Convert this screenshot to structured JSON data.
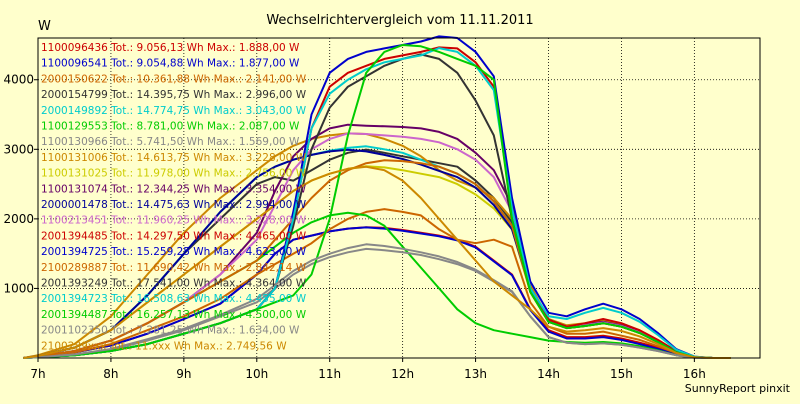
{
  "chart_data": {
    "type": "line",
    "title": "Wechselrichtervergleich vom 11.11.2011",
    "ylabel": "W",
    "xlabel": "",
    "credit": "SunnyReport pinxit",
    "xlim": [
      7,
      16.9
    ],
    "ylim": [
      0,
      4600
    ],
    "y_ticks": [
      1000,
      2000,
      3000,
      4000
    ],
    "x_ticks": [
      7,
      8,
      9,
      10,
      11,
      12,
      13,
      14,
      15,
      16
    ],
    "x_tick_labels": [
      "7h",
      "8h",
      "9h",
      "10h",
      "11h",
      "12h",
      "13h",
      "14h",
      "15h",
      "16h"
    ],
    "grid": true,
    "legend_position": "top-left",
    "legend": [
      {
        "id": "1100096436",
        "label": "1100096436 Tot.: 9.056,13 Wh Max.: 1.888,00 W",
        "color": "#cc0000"
      },
      {
        "id": "1100096541",
        "label": "1100096541 Tot.: 9.054,88 Wh Max.: 1.877,00 W",
        "color": "#0000cc"
      },
      {
        "id": "2000150622",
        "label": "2000150622 Tot.: 10.361,88 Wh Max.: 2.141,00 W",
        "color": "#cc6600"
      },
      {
        "id": "2000154799",
        "label": "2000154799 Tot.: 14.395,75 Wh Max.: 2.996,00 W",
        "color": "#333333"
      },
      {
        "id": "2000149892",
        "label": "2000149892 Tot.: 14.774,75 Wh Max.: 3.043,00 W",
        "color": "#00cccc"
      },
      {
        "id": "1100129553",
        "label": "1100129553 Tot.: 8.781,00 Wh Max.: 2.087,00 W",
        "color": "#00cc00"
      },
      {
        "id": "1100130966",
        "label": "1100130966 Tot.: 5.741,50 Wh Max.: 1.569,00 W",
        "color": "#888888"
      },
      {
        "id": "1100131006",
        "label": "1100131006 Tot.: 14.613,75 Wh Max.: 3.228,00 W",
        "color": "#cc8800"
      },
      {
        "id": "1100131025",
        "label": "1100131025 Tot.: 11.978,00 Wh Max.: 2.756,00 W",
        "color": "#cccc00"
      },
      {
        "id": "1100131074",
        "label": "1100131074 Tot.: 12.344,25 Wh Max.: 3.354,00 W",
        "color": "#660066"
      },
      {
        "id": "2000001478",
        "label": "2000001478 Tot.: 14.475,63 Wh Max.: 2.994,00 W",
        "color": "#000099"
      },
      {
        "id": "1100213451",
        "label": "1100213451 Tot.: 11.960,25 Wh Max.: 3.228,00 W",
        "color": "#cc66cc"
      },
      {
        "id": "2001394485",
        "label": "2001394485 Tot.: 14.297,50 Wh Max.: 4.465,00 W",
        "color": "#cc0000"
      },
      {
        "id": "2001394725",
        "label": "2001394725 Tot.: 15.259,25 Wh Max.: 4.623,00 W",
        "color": "#0000cc"
      },
      {
        "id": "2100289887",
        "label": "2100289887 Tot.: 11.690,42 Wh Max.: 2.842,14 W",
        "color": "#cc6600"
      },
      {
        "id": "2001393249",
        "label": "2001393249 Tot.: 17.541,00 Wh Max.: 4.364,00 W",
        "color": "#333333"
      },
      {
        "id": "2001394723",
        "label": "2001394723 Tot.: 16.508,63 Wh Max.: 4.455,00 W",
        "color": "#00cccc"
      },
      {
        "id": "2001394487",
        "label": "2001394487 Tot.: 16.257,13 Wh Max.: 4.500,00 W",
        "color": "#00cc00"
      },
      {
        "id": "2001102350",
        "label": "2001102350 Tot.: 7.281,25 Wh Max.: 1.634,00 W",
        "color": "#888888"
      },
      {
        "id": "2100289xxx",
        "label": "2100289xxx Tot.: 11.xxx Wh Max.: 2.749,56 W",
        "color": "#cc8800"
      }
    ],
    "x": [
      6.8,
      7,
      7.5,
      8,
      8.5,
      9,
      9.5,
      10,
      10.25,
      10.5,
      10.75,
      11,
      11.25,
      11.5,
      11.75,
      12,
      12.25,
      12.5,
      12.75,
      13,
      13.25,
      13.5,
      13.75,
      14,
      14.25,
      14.5,
      14.75,
      15,
      15.25,
      15.5,
      15.75,
      16,
      16.25,
      16.5
    ],
    "series": [
      {
        "color": "#cc0000",
        "values": [
          0,
          20,
          80,
          180,
          350,
          560,
          780,
          1200,
          1500,
          1700,
          1760,
          1820,
          1860,
          1880,
          1870,
          1840,
          1800,
          1760,
          1700,
          1600,
          1400,
          1200,
          700,
          400,
          300,
          300,
          320,
          280,
          220,
          150,
          60,
          10,
          0,
          0
        ]
      },
      {
        "color": "#0000cc",
        "values": [
          0,
          20,
          80,
          180,
          350,
          560,
          780,
          1200,
          1500,
          1700,
          1760,
          1820,
          1860,
          1877,
          1860,
          1830,
          1790,
          1750,
          1690,
          1590,
          1390,
          1190,
          690,
          380,
          280,
          280,
          300,
          260,
          200,
          130,
          50,
          10,
          0,
          0
        ]
      },
      {
        "color": "#cc6600",
        "values": [
          0,
          20,
          80,
          200,
          400,
          600,
          850,
          1200,
          1350,
          1500,
          1650,
          1850,
          2000,
          2100,
          2141,
          2100,
          2050,
          1850,
          1700,
          1650,
          1700,
          1600,
          800,
          450,
          350,
          350,
          380,
          320,
          260,
          170,
          70,
          10,
          0,
          0
        ]
      },
      {
        "color": "#333333",
        "values": [
          0,
          30,
          150,
          400,
          900,
          1500,
          2000,
          2500,
          2600,
          2550,
          2700,
          2850,
          2950,
          2996,
          2950,
          2900,
          2850,
          2800,
          2750,
          2550,
          2300,
          1950,
          1000,
          550,
          450,
          480,
          520,
          470,
          380,
          240,
          90,
          15,
          0,
          0
        ]
      },
      {
        "color": "#00cccc",
        "values": [
          0,
          30,
          150,
          400,
          900,
          1500,
          2100,
          2600,
          2750,
          2850,
          2920,
          2980,
          3020,
          3043,
          3000,
          2950,
          2850,
          2750,
          2650,
          2500,
          2250,
          1900,
          1000,
          560,
          460,
          490,
          530,
          480,
          390,
          250,
          95,
          15,
          0,
          0
        ]
      },
      {
        "color": "#00cc00",
        "values": [
          0,
          20,
          100,
          250,
          500,
          800,
          1100,
          1400,
          1600,
          1800,
          1950,
          2050,
          2087,
          2050,
          1900,
          1600,
          1300,
          1000,
          700,
          500,
          400,
          350,
          300,
          250,
          230,
          220,
          230,
          210,
          170,
          110,
          40,
          10,
          0,
          0
        ]
      },
      {
        "color": "#888888",
        "values": [
          0,
          10,
          50,
          120,
          250,
          400,
          600,
          800,
          1000,
          1200,
          1350,
          1450,
          1520,
          1569,
          1550,
          1520,
          1480,
          1420,
          1350,
          1250,
          1100,
          950,
          600,
          300,
          220,
          200,
          210,
          190,
          150,
          100,
          40,
          5,
          0,
          0
        ]
      },
      {
        "color": "#cc8800",
        "values": [
          0,
          40,
          200,
          600,
          1200,
          1800,
          2300,
          2700,
          2900,
          3050,
          3150,
          3200,
          3228,
          3220,
          3150,
          3050,
          2900,
          2700,
          2550,
          2450,
          2300,
          2000,
          1050,
          560,
          470,
          500,
          540,
          480,
          390,
          250,
          95,
          15,
          0,
          0
        ]
      },
      {
        "color": "#cccc00",
        "values": [
          0,
          30,
          150,
          400,
          800,
          1200,
          1600,
          2000,
          2200,
          2400,
          2550,
          2650,
          2720,
          2756,
          2740,
          2700,
          2650,
          2600,
          2500,
          2350,
          2150,
          1850,
          950,
          520,
          430,
          460,
          500,
          450,
          360,
          230,
          85,
          12,
          0,
          0
        ]
      },
      {
        "color": "#660066",
        "values": [
          0,
          20,
          100,
          250,
          500,
          800,
          1200,
          1800,
          2400,
          2900,
          3150,
          3300,
          3354,
          3340,
          3330,
          3320,
          3300,
          3250,
          3150,
          2950,
          2700,
          2200,
          1000,
          550,
          450,
          480,
          520,
          470,
          380,
          240,
          90,
          15,
          0,
          0
        ]
      },
      {
        "color": "#000099",
        "values": [
          0,
          30,
          150,
          400,
          900,
          1500,
          2100,
          2600,
          2750,
          2850,
          2920,
          2970,
          2994,
          2970,
          2920,
          2860,
          2780,
          2690,
          2600,
          2450,
          2200,
          1850,
          980,
          540,
          440,
          470,
          510,
          460,
          370,
          240,
          90,
          15,
          0,
          0
        ]
      },
      {
        "color": "#cc66cc",
        "values": [
          0,
          20,
          100,
          250,
          500,
          800,
          1200,
          1700,
          2200,
          2700,
          3000,
          3150,
          3228,
          3220,
          3200,
          3180,
          3150,
          3100,
          3000,
          2850,
          2600,
          2100,
          980,
          540,
          440,
          470,
          510,
          460,
          370,
          240,
          90,
          15,
          0,
          0
        ]
      },
      {
        "color": "#cc0000",
        "values": [
          0,
          10,
          40,
          100,
          200,
          350,
          500,
          700,
          1000,
          2000,
          3300,
          3900,
          4100,
          4200,
          4300,
          4350,
          4400,
          4465,
          4450,
          4250,
          3900,
          2200,
          1000,
          550,
          450,
          500,
          560,
          500,
          400,
          260,
          100,
          15,
          0,
          0
        ]
      },
      {
        "color": "#0000cc",
        "values": [
          0,
          10,
          40,
          100,
          200,
          350,
          500,
          700,
          1000,
          2100,
          3500,
          4100,
          4300,
          4400,
          4450,
          4500,
          4550,
          4623,
          4600,
          4400,
          4050,
          2300,
          1100,
          650,
          600,
          700,
          780,
          700,
          560,
          360,
          130,
          20,
          0,
          0
        ]
      },
      {
        "color": "#cc6600",
        "values": [
          0,
          20,
          100,
          250,
          500,
          800,
          1100,
          1400,
          1700,
          2000,
          2300,
          2550,
          2700,
          2800,
          2842,
          2830,
          2800,
          2750,
          2650,
          2500,
          2250,
          1900,
          950,
          520,
          430,
          460,
          500,
          450,
          360,
          230,
          85,
          12,
          0,
          0
        ]
      },
      {
        "color": "#333333",
        "values": [
          0,
          10,
          40,
          100,
          200,
          350,
          500,
          700,
          1000,
          1900,
          3000,
          3600,
          3900,
          4050,
          4200,
          4300,
          4364,
          4300,
          4100,
          3700,
          3200,
          2000,
          950,
          520,
          430,
          460,
          500,
          450,
          360,
          230,
          85,
          12,
          0,
          0
        ]
      },
      {
        "color": "#00cccc",
        "values": [
          0,
          10,
          40,
          100,
          200,
          350,
          500,
          700,
          1000,
          2000,
          3300,
          3800,
          4000,
          4150,
          4250,
          4300,
          4350,
          4455,
          4400,
          4200,
          3850,
          2150,
          1000,
          600,
          560,
          650,
          720,
          650,
          520,
          330,
          120,
          18,
          0,
          0
        ]
      },
      {
        "color": "#00cc00",
        "values": [
          0,
          10,
          40,
          100,
          200,
          350,
          500,
          700,
          800,
          900,
          1200,
          2000,
          3200,
          4100,
          4400,
          4500,
          4480,
          4400,
          4300,
          4200,
          4000,
          2000,
          950,
          520,
          430,
          460,
          500,
          450,
          360,
          230,
          85,
          12,
          0,
          0
        ]
      },
      {
        "color": "#888888",
        "values": [
          0,
          10,
          50,
          130,
          270,
          420,
          620,
          850,
          1050,
          1250,
          1400,
          1500,
          1580,
          1634,
          1610,
          1570,
          1520,
          1460,
          1380,
          1270,
          1120,
          960,
          600,
          300,
          220,
          200,
          210,
          190,
          150,
          100,
          40,
          5,
          0,
          0
        ]
      },
      {
        "color": "#cc8800",
        "values": [
          0,
          30,
          150,
          400,
          800,
          1200,
          1600,
          2000,
          2200,
          2400,
          2550,
          2650,
          2720,
          2749,
          2700,
          2550,
          2300,
          2000,
          1700,
          1400,
          1100,
          900,
          700,
          450,
          380,
          400,
          430,
          390,
          310,
          200,
          75,
          10,
          0,
          0
        ]
      }
    ]
  }
}
